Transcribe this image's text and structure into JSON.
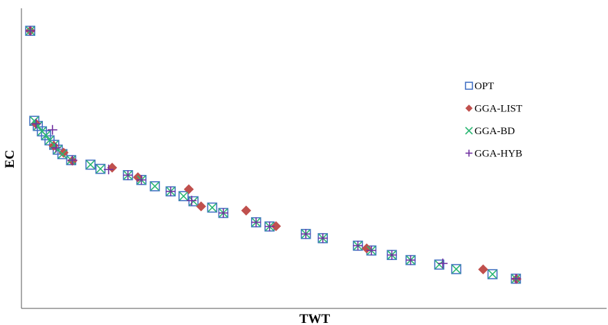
{
  "chart_data": {
    "type": "scatter",
    "title": "",
    "xlabel": "TWT",
    "ylabel": "EC",
    "grid": false,
    "legend_position": "right",
    "xlim": [
      0,
      100
    ],
    "ylim": [
      0,
      100
    ],
    "series": [
      {
        "name": "OPT",
        "marker": "square",
        "color": "#4472c4",
        "x": [
          1.5,
          2.2,
          2.8,
          3.5,
          4.2,
          4.8,
          5.6,
          6.2,
          7.0,
          8.5,
          11.8,
          13.5,
          18.2,
          20.5,
          22.8,
          25.5,
          27.7,
          29.4,
          32.6,
          34.5,
          40.1,
          42.4,
          48.6,
          51.5,
          57.5,
          59.8,
          63.3,
          66.5,
          71.4,
          74.3,
          80.5,
          84.5
        ],
        "y": [
          92.5,
          62.5,
          60.8,
          59.0,
          57.7,
          56.0,
          54.5,
          52.9,
          51.4,
          49.4,
          47.9,
          46.5,
          44.4,
          42.8,
          40.7,
          39.0,
          37.4,
          35.7,
          33.6,
          31.8,
          28.7,
          27.3,
          24.8,
          23.4,
          20.9,
          19.3,
          17.8,
          16.1,
          14.6,
          13.1,
          11.4,
          9.9
        ]
      },
      {
        "name": "GGA-LIST",
        "marker": "diamond",
        "color": "#c0504d",
        "x": [
          1.5,
          2.5,
          5.5,
          7.2,
          8.7,
          15.5,
          19.9,
          28.6,
          30.7,
          38.4,
          43.5,
          59.0,
          78.9,
          84.6
        ],
        "y": [
          92.5,
          61.5,
          54.2,
          51.9,
          49.2,
          46.9,
          43.7,
          39.7,
          34.0,
          32.6,
          27.4,
          20.0,
          13.0,
          9.8
        ]
      },
      {
        "name": "GGA-BD",
        "marker": "x",
        "color": "#2bb673",
        "x": [
          1.5,
          2.2,
          2.8,
          3.5,
          4.2,
          4.8,
          5.6,
          6.2,
          7.0,
          8.5,
          11.8,
          13.5,
          18.2,
          20.5,
          22.8,
          25.5,
          27.7,
          29.4,
          32.6,
          34.5,
          40.1,
          42.4,
          48.6,
          51.5,
          57.5,
          59.8,
          63.3,
          66.5,
          71.4,
          74.3,
          80.5,
          84.5
        ],
        "y": [
          92.5,
          62.5,
          60.8,
          59.0,
          57.7,
          56.0,
          54.5,
          52.9,
          51.4,
          49.4,
          47.9,
          46.5,
          44.4,
          42.8,
          40.7,
          39.0,
          37.4,
          35.7,
          33.6,
          31.8,
          28.7,
          27.3,
          24.8,
          23.4,
          20.9,
          19.3,
          17.8,
          16.1,
          14.6,
          13.1,
          11.4,
          9.9
        ]
      },
      {
        "name": "GGA-HYB",
        "marker": "plus",
        "color": "#7030a0",
        "x": [
          1.5,
          2.5,
          5.3,
          5.9,
          8.7,
          14.9,
          18.2,
          20.5,
          25.5,
          29.1,
          34.5,
          40.1,
          42.4,
          48.6,
          51.5,
          57.5,
          59.8,
          63.3,
          66.5,
          72.0,
          84.5
        ],
        "y": [
          92.5,
          61.5,
          59.5,
          53.5,
          49.4,
          46.3,
          44.4,
          42.8,
          39.0,
          35.9,
          31.8,
          28.7,
          27.3,
          24.8,
          23.4,
          20.9,
          19.3,
          17.8,
          16.1,
          15.0,
          9.9
        ]
      }
    ]
  }
}
